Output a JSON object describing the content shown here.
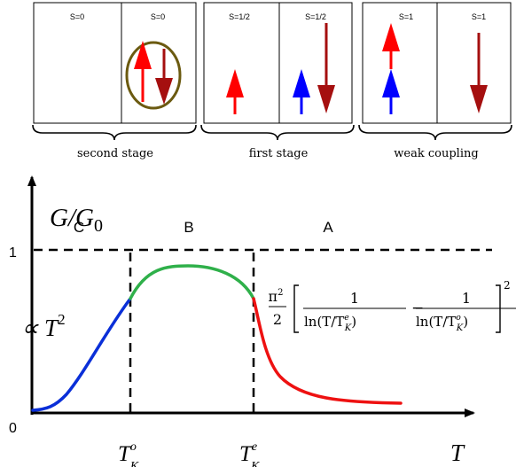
{
  "panels": [
    {
      "left_spin": "S=0",
      "right_spin": "S=0",
      "brace_label": "second stage"
    },
    {
      "left_spin": "S=1/2",
      "right_spin": "S=1/2",
      "brace_label": "first stage"
    },
    {
      "left_spin": "S=1",
      "right_spin": "S=1",
      "brace_label": "weak coupling"
    }
  ],
  "colors": {
    "arrow_red": "#ff0000",
    "arrow_blue": "#0000ff",
    "arrow_darkred": "#a50f0f",
    "ellipse": "#6b5a10",
    "curve_blue": "#0a2fd8",
    "curve_green": "#2fb04a",
    "curve_red": "#ee1111"
  },
  "plot": {
    "y_axis_label": "G/G",
    "y_axis_sub": "0",
    "x_axis_label": "T",
    "region_labels": [
      "C",
      "B",
      "A"
    ],
    "tick_one": "1",
    "tick_zero": "0",
    "low_T_label": "∝ T",
    "low_T_exp": "2",
    "x_tick_left": "T",
    "x_tick_left_sup": "o",
    "x_tick_left_sub": "K",
    "x_tick_right": "T",
    "x_tick_right_sup": "e",
    "x_tick_right_sub": "K",
    "formula": {
      "pi": "π",
      "pi_exp": "2",
      "two": "2",
      "one_a": "1",
      "one_b": "1",
      "minus": "−",
      "den_a": "ln(T/T",
      "den_a_sup": "e",
      "den_a_sub": "K",
      "den_a_close": ")",
      "den_b": "ln(T/T",
      "den_b_sup": "o",
      "den_b_sub": "K",
      "den_b_close": ")",
      "outer_exp": "2"
    }
  }
}
